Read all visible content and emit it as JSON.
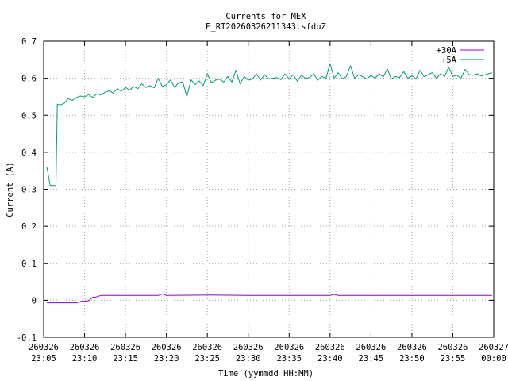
{
  "chart_data": {
    "type": "line",
    "title": "Currents for MEX",
    "subtitle": "E_RT20260326211343.sfduZ",
    "xlabel": "Time (yymmdd HH:MM)",
    "ylabel": "Current (A)",
    "xlim": [
      "2026-03-26 23:05",
      "2026-03-27 00:00"
    ],
    "ylim": [
      -0.1,
      0.7
    ],
    "grid": true,
    "legend_position": "top-right",
    "x_ticks": [
      {
        "line1": "260326",
        "line2": "23:05"
      },
      {
        "line1": "260326",
        "line2": "23:10"
      },
      {
        "line1": "260326",
        "line2": "23:15"
      },
      {
        "line1": "260326",
        "line2": "23:20"
      },
      {
        "line1": "260326",
        "line2": "23:25"
      },
      {
        "line1": "260326",
        "line2": "23:30"
      },
      {
        "line1": "260326",
        "line2": "23:35"
      },
      {
        "line1": "260326",
        "line2": "23:40"
      },
      {
        "line1": "260326",
        "line2": "23:45"
      },
      {
        "line1": "260326",
        "line2": "23:50"
      },
      {
        "line1": "260326",
        "line2": "23:55"
      },
      {
        "line1": "260327",
        "line2": "00:00"
      }
    ],
    "y_ticks": [
      "-0.1",
      "0",
      "0.1",
      "0.2",
      "0.3",
      "0.4",
      "0.5",
      "0.6",
      "0.7"
    ],
    "series": [
      {
        "name": "+30A",
        "color": "#9400d3",
        "x": [
          "23:05:24",
          "23:09:00",
          "23:09:30",
          "23:10:00",
          "23:10:30",
          "23:11:00",
          "23:11:24",
          "23:12:00",
          "23:15:00",
          "23:19:00",
          "23:19:30",
          "23:20:00",
          "23:25:00",
          "23:30:00",
          "23:35:00",
          "23:40:00",
          "23:40:30",
          "23:41:00",
          "23:45:00",
          "23:50:00",
          "23:55:00",
          "23:59:48"
        ],
        "y": [
          -0.007,
          -0.007,
          -0.003,
          -0.003,
          -0.001,
          0.008,
          0.009,
          0.013,
          0.013,
          0.013,
          0.017,
          0.013,
          0.014,
          0.013,
          0.013,
          0.013,
          0.016,
          0.013,
          0.013,
          0.013,
          0.013,
          0.013
        ]
      },
      {
        "name": "+5A",
        "color": "#009e73",
        "x": [
          "23:05:24",
          "23:05:48",
          "23:06:30",
          "23:06:40",
          "23:07:00",
          "23:07:30",
          "23:08:00",
          "23:08:30",
          "23:09:00",
          "23:09:30",
          "23:10:00",
          "23:10:30",
          "23:11:00",
          "23:11:30",
          "23:12:00",
          "23:12:30",
          "23:13:00",
          "23:13:30",
          "23:14:00",
          "23:14:30",
          "23:15:00",
          "23:15:30",
          "23:16:00",
          "23:16:30",
          "23:17:00",
          "23:17:30",
          "23:18:00",
          "23:18:30",
          "23:19:00",
          "23:19:30",
          "23:20:00",
          "23:20:30",
          "23:21:00",
          "23:21:30",
          "23:22:00",
          "23:22:30",
          "23:23:00",
          "23:23:30",
          "23:24:00",
          "23:24:30",
          "23:25:00",
          "23:25:30",
          "23:26:00",
          "23:26:30",
          "23:27:00",
          "23:27:30",
          "23:28:00",
          "23:28:30",
          "23:29:00",
          "23:29:30",
          "23:30:00",
          "23:30:30",
          "23:31:00",
          "23:31:30",
          "23:32:00",
          "23:32:30",
          "23:33:00",
          "23:33:30",
          "23:34:00",
          "23:34:30",
          "23:35:00",
          "23:35:30",
          "23:36:00",
          "23:36:30",
          "23:37:00",
          "23:37:30",
          "23:38:00",
          "23:38:30",
          "23:39:00",
          "23:39:30",
          "23:40:00",
          "23:40:30",
          "23:41:00",
          "23:41:30",
          "23:42:00",
          "23:42:30",
          "23:43:00",
          "23:43:30",
          "23:44:00",
          "23:44:30",
          "23:45:00",
          "23:45:30",
          "23:46:00",
          "23:46:30",
          "23:47:00",
          "23:47:30",
          "23:48:00",
          "23:48:30",
          "23:49:00",
          "23:49:30",
          "23:50:00",
          "23:50:30",
          "23:51:00",
          "23:51:30",
          "23:52:00",
          "23:52:30",
          "23:53:00",
          "23:53:30",
          "23:54:00",
          "23:54:30",
          "23:55:00",
          "23:55:30",
          "23:56:00",
          "23:56:30",
          "23:57:00",
          "23:57:30",
          "23:58:00",
          "23:58:30",
          "23:59:00",
          "23:59:48"
        ],
        "y": [
          0.36,
          0.31,
          0.31,
          0.53,
          0.528,
          0.532,
          0.545,
          0.54,
          0.548,
          0.552,
          0.55,
          0.556,
          0.548,
          0.558,
          0.555,
          0.562,
          0.566,
          0.56,
          0.572,
          0.565,
          0.575,
          0.568,
          0.578,
          0.572,
          0.585,
          0.575,
          0.58,
          0.574,
          0.6,
          0.578,
          0.583,
          0.596,
          0.575,
          0.588,
          0.59,
          0.55,
          0.596,
          0.583,
          0.593,
          0.58,
          0.612,
          0.588,
          0.595,
          0.598,
          0.59,
          0.605,
          0.59,
          0.622,
          0.585,
          0.605,
          0.595,
          0.598,
          0.612,
          0.595,
          0.61,
          0.598,
          0.6,
          0.602,
          0.596,
          0.612,
          0.598,
          0.61,
          0.592,
          0.608,
          0.6,
          0.602,
          0.612,
          0.595,
          0.605,
          0.6,
          0.64,
          0.6,
          0.615,
          0.598,
          0.605,
          0.634,
          0.6,
          0.61,
          0.604,
          0.598,
          0.608,
          0.6,
          0.612,
          0.604,
          0.625,
          0.598,
          0.605,
          0.602,
          0.618,
          0.6,
          0.607,
          0.598,
          0.622,
          0.604,
          0.61,
          0.615,
          0.6,
          0.612,
          0.605,
          0.63,
          0.605,
          0.608,
          0.6,
          0.624,
          0.61,
          0.608,
          0.612,
          0.606,
          0.61,
          0.615
        ]
      }
    ]
  }
}
